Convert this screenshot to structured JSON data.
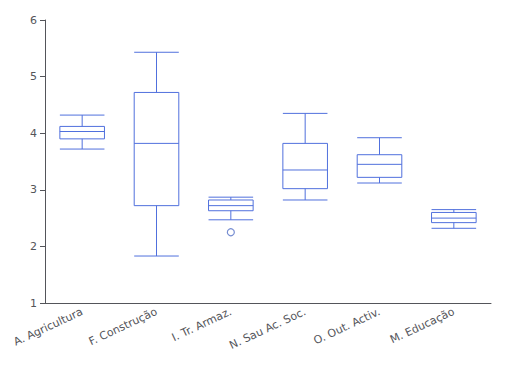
{
  "chart_data": {
    "type": "boxplot",
    "categories": [
      "A. Agricultura",
      "F. Construção",
      "I. Tr. Armaz.",
      "N. Sau Ac. Soc.",
      "O. Out. Activ.",
      "M. Educação"
    ],
    "boxes": [
      {
        "whislo": 3.72,
        "q1": 3.9,
        "median": 4.03,
        "q3": 4.12,
        "whishi": 4.32,
        "fliers": []
      },
      {
        "whislo": 1.83,
        "q1": 2.72,
        "median": 3.82,
        "q3": 4.72,
        "whishi": 5.43,
        "fliers": []
      },
      {
        "whislo": 2.47,
        "q1": 2.63,
        "median": 2.72,
        "q3": 2.82,
        "whishi": 2.87,
        "fliers": [
          2.25
        ]
      },
      {
        "whislo": 2.82,
        "q1": 3.02,
        "median": 3.35,
        "q3": 3.82,
        "whishi": 4.35,
        "fliers": []
      },
      {
        "whislo": 3.12,
        "q1": 3.22,
        "median": 3.45,
        "q3": 3.62,
        "whishi": 3.92,
        "fliers": []
      },
      {
        "whislo": 2.32,
        "q1": 2.42,
        "median": 2.5,
        "q3": 2.6,
        "whishi": 2.65,
        "fliers": []
      }
    ],
    "ylim": [
      1,
      6
    ],
    "yticks": [
      1,
      2,
      3,
      4,
      5,
      6
    ],
    "grid": false
  }
}
